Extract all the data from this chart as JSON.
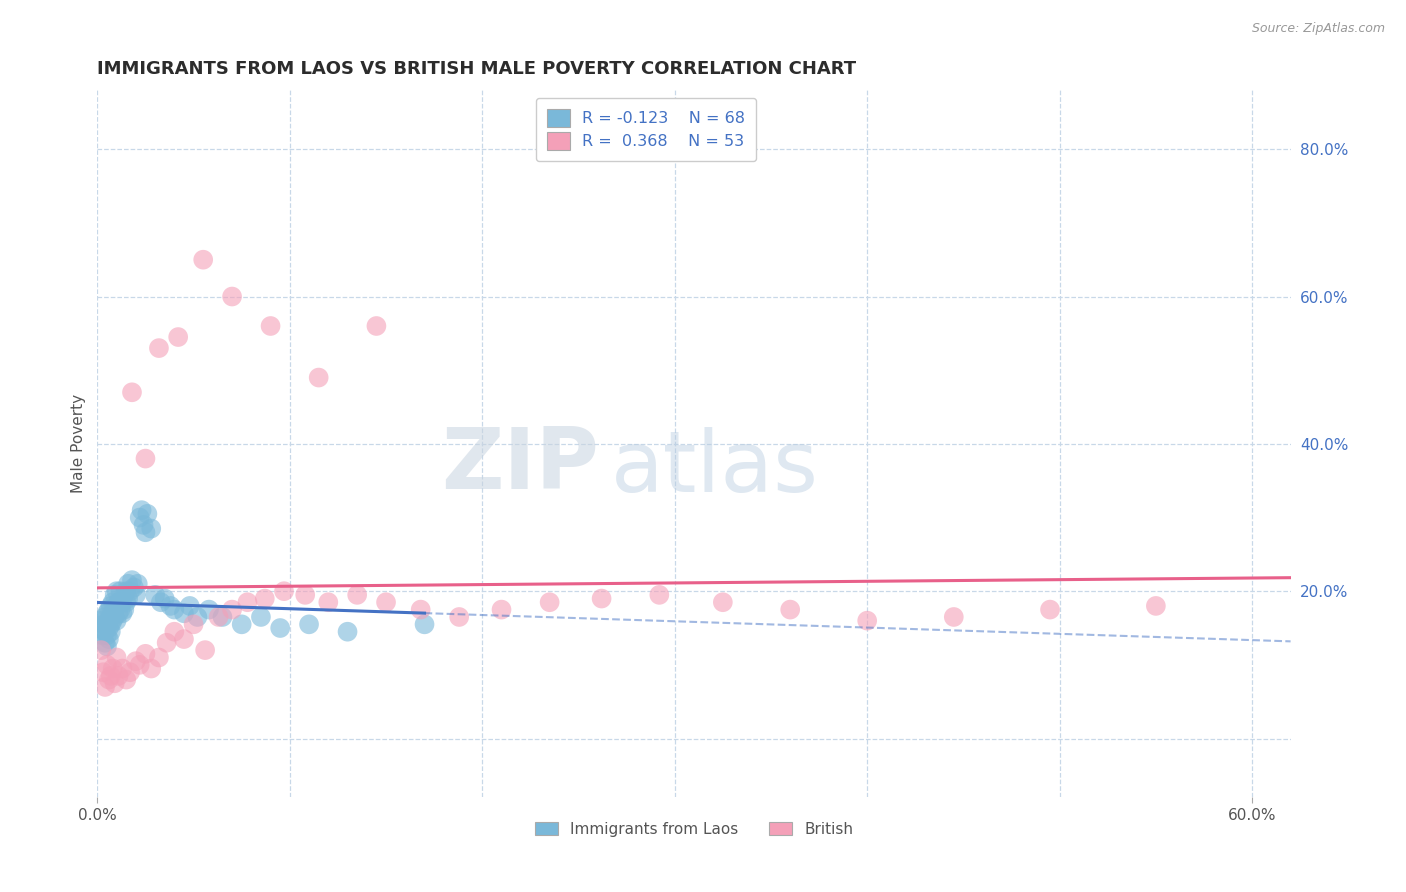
{
  "title": "IMMIGRANTS FROM LAOS VS BRITISH MALE POVERTY CORRELATION CHART",
  "source_text": "Source: ZipAtlas.com",
  "ylabel": "Male Poverty",
  "xlim": [
    0.0,
    0.62
  ],
  "ylim": [
    -0.08,
    0.88
  ],
  "x_ticks": [
    0.0,
    0.1,
    0.2,
    0.3,
    0.4,
    0.5,
    0.6
  ],
  "y_ticks_right": [
    0.0,
    0.2,
    0.4,
    0.6,
    0.8
  ],
  "y_tick_labels_right": [
    "",
    "20.0%",
    "40.0%",
    "60.0%",
    "80.0%"
  ],
  "legend_blue_label": "Immigrants from Laos",
  "legend_pink_label": "British",
  "blue_color": "#7ab8d9",
  "pink_color": "#f4a0b8",
  "blue_line_color": "#4472c4",
  "pink_line_color": "#e8608a",
  "blue_scatter_x": [
    0.001,
    0.002,
    0.003,
    0.003,
    0.004,
    0.004,
    0.004,
    0.005,
    0.005,
    0.005,
    0.005,
    0.006,
    0.006,
    0.006,
    0.006,
    0.007,
    0.007,
    0.007,
    0.007,
    0.008,
    0.008,
    0.008,
    0.009,
    0.009,
    0.009,
    0.01,
    0.01,
    0.01,
    0.011,
    0.011,
    0.012,
    0.012,
    0.012,
    0.013,
    0.013,
    0.014,
    0.014,
    0.015,
    0.015,
    0.016,
    0.016,
    0.017,
    0.018,
    0.019,
    0.02,
    0.021,
    0.022,
    0.023,
    0.024,
    0.025,
    0.026,
    0.028,
    0.03,
    0.033,
    0.035,
    0.038,
    0.04,
    0.045,
    0.048,
    0.052,
    0.058,
    0.065,
    0.075,
    0.085,
    0.095,
    0.11,
    0.13,
    0.17
  ],
  "blue_scatter_y": [
    0.15,
    0.16,
    0.14,
    0.155,
    0.145,
    0.165,
    0.13,
    0.155,
    0.17,
    0.14,
    0.125,
    0.16,
    0.175,
    0.15,
    0.135,
    0.165,
    0.18,
    0.155,
    0.145,
    0.17,
    0.185,
    0.16,
    0.175,
    0.195,
    0.165,
    0.18,
    0.2,
    0.16,
    0.185,
    0.17,
    0.185,
    0.175,
    0.2,
    0.185,
    0.17,
    0.195,
    0.175,
    0.2,
    0.185,
    0.21,
    0.19,
    0.2,
    0.215,
    0.205,
    0.195,
    0.21,
    0.3,
    0.31,
    0.29,
    0.28,
    0.305,
    0.285,
    0.195,
    0.185,
    0.19,
    0.18,
    0.175,
    0.17,
    0.18,
    0.165,
    0.175,
    0.165,
    0.155,
    0.165,
    0.15,
    0.155,
    0.145,
    0.155
  ],
  "pink_scatter_x": [
    0.002,
    0.003,
    0.004,
    0.005,
    0.006,
    0.007,
    0.008,
    0.009,
    0.01,
    0.011,
    0.013,
    0.015,
    0.017,
    0.02,
    0.022,
    0.025,
    0.028,
    0.032,
    0.036,
    0.04,
    0.045,
    0.05,
    0.056,
    0.063,
    0.07,
    0.078,
    0.087,
    0.097,
    0.108,
    0.12,
    0.135,
    0.15,
    0.168,
    0.188,
    0.21,
    0.235,
    0.262,
    0.292,
    0.325,
    0.36,
    0.4,
    0.445,
    0.495,
    0.55,
    0.018,
    0.025,
    0.032,
    0.042,
    0.055,
    0.07,
    0.09,
    0.115,
    0.145
  ],
  "pink_scatter_y": [
    0.12,
    0.09,
    0.07,
    0.1,
    0.08,
    0.085,
    0.095,
    0.075,
    0.11,
    0.085,
    0.095,
    0.08,
    0.09,
    0.105,
    0.1,
    0.115,
    0.095,
    0.11,
    0.13,
    0.145,
    0.135,
    0.155,
    0.12,
    0.165,
    0.175,
    0.185,
    0.19,
    0.2,
    0.195,
    0.185,
    0.195,
    0.185,
    0.175,
    0.165,
    0.175,
    0.185,
    0.19,
    0.195,
    0.185,
    0.175,
    0.16,
    0.165,
    0.175,
    0.18,
    0.47,
    0.38,
    0.53,
    0.545,
    0.65,
    0.6,
    0.56,
    0.49,
    0.56
  ],
  "watermark_zip": "ZIP",
  "watermark_atlas": "atlas",
  "background_color": "#ffffff",
  "grid_color": "#c8d8e8",
  "title_color": "#2c2c2c",
  "title_fontsize": 13,
  "axis_label_color": "#555555",
  "tick_color_right": "#4472c4",
  "tick_color_bottom": "#555555"
}
